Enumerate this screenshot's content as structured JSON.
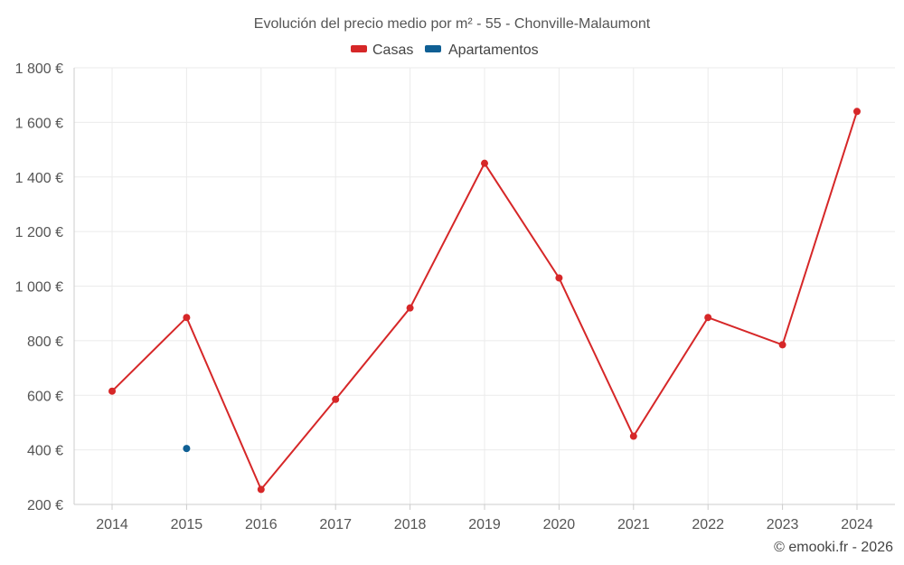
{
  "credit": "© emooki.fr - 2026",
  "chart_data": {
    "type": "line",
    "title": "Evolución del precio medio por m² - 55 - Chonville-Malaumont",
    "x": [
      "2014",
      "2015",
      "2016",
      "2017",
      "2018",
      "2019",
      "2020",
      "2021",
      "2022",
      "2023",
      "2024"
    ],
    "yticks": [
      "200 €",
      "400 €",
      "600 €",
      "800 €",
      "1 000 €",
      "1 200 €",
      "1 400 €",
      "1 600 €",
      "1 800 €"
    ],
    "ytick_values": [
      200,
      400,
      600,
      800,
      1000,
      1200,
      1400,
      1600,
      1800
    ],
    "ylim": [
      200,
      1800
    ],
    "grid": true,
    "legend_position": "top-center",
    "series": [
      {
        "name": "Casas",
        "color": "#d62728",
        "values": [
          615,
          885,
          255,
          585,
          920,
          1450,
          1030,
          450,
          885,
          785,
          1640
        ]
      },
      {
        "name": "Apartamentos",
        "color": "#0f5f94",
        "values": [
          null,
          405,
          null,
          null,
          null,
          null,
          null,
          null,
          null,
          null,
          null
        ]
      }
    ]
  }
}
